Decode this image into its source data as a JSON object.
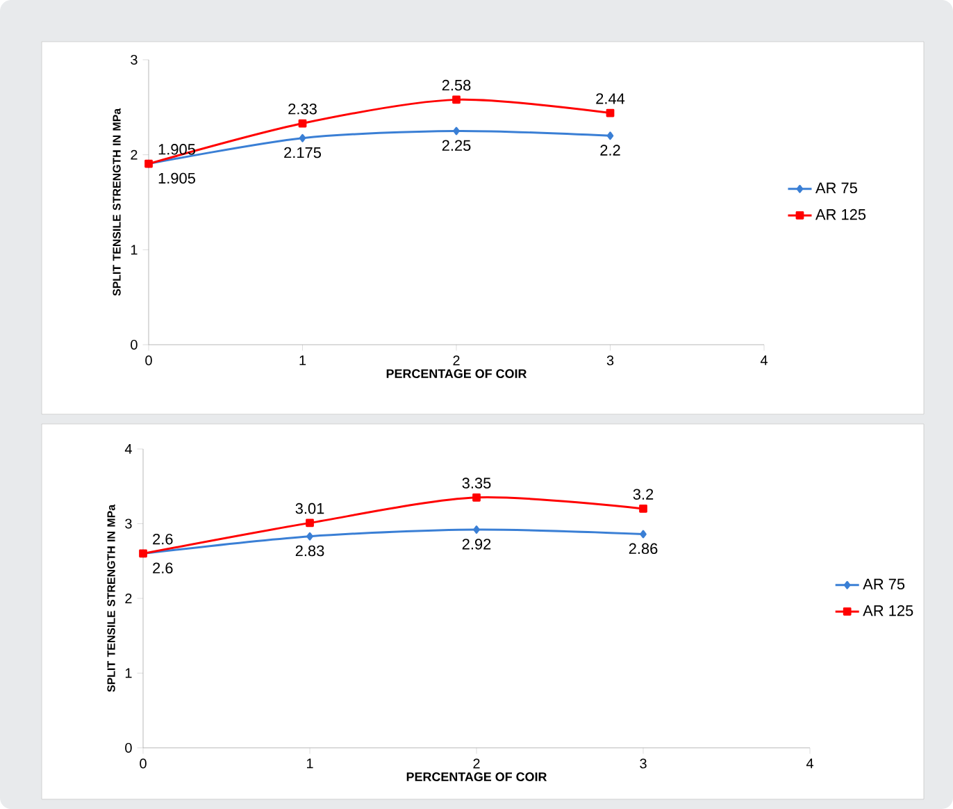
{
  "chart_data": [
    {
      "type": "line",
      "xlabel": "PERCENTAGE OF COIR",
      "ylabel": "SPLIT TENSILE STRENGTH IN MPa",
      "x": [
        0,
        1,
        2,
        3
      ],
      "xlim": [
        0,
        4
      ],
      "xticks": [
        0,
        1,
        2,
        3,
        4
      ],
      "ylim": [
        0,
        3
      ],
      "yticks": [
        0,
        1,
        2,
        3
      ],
      "grid": false,
      "legend": "right",
      "data_labels": true,
      "series": [
        {
          "name": "AR 75",
          "color": "#3a7fd5",
          "marker": "diamond",
          "values": [
            1.905,
            2.175,
            2.25,
            2.2
          ]
        },
        {
          "name": "AR 125",
          "color": "#ff0000",
          "marker": "square",
          "values": [
            1.905,
            2.33,
            2.58,
            2.44
          ]
        }
      ]
    },
    {
      "type": "line",
      "xlabel": "PERCENTAGE OF COIR",
      "ylabel": "SPLIT TENSILE STRENGTH IN MPa",
      "x": [
        0,
        1,
        2,
        3
      ],
      "xlim": [
        0,
        4
      ],
      "xticks": [
        0,
        1,
        2,
        3,
        4
      ],
      "ylim": [
        0,
        4
      ],
      "yticks": [
        0,
        1,
        2,
        3,
        4
      ],
      "grid": false,
      "legend": "right",
      "data_labels": true,
      "series": [
        {
          "name": "AR 75",
          "color": "#3a7fd5",
          "marker": "diamond",
          "values": [
            2.6,
            2.83,
            2.92,
            2.86
          ]
        },
        {
          "name": "AR 125",
          "color": "#ff0000",
          "marker": "square",
          "values": [
            2.6,
            3.01,
            3.35,
            3.2
          ]
        }
      ]
    }
  ]
}
